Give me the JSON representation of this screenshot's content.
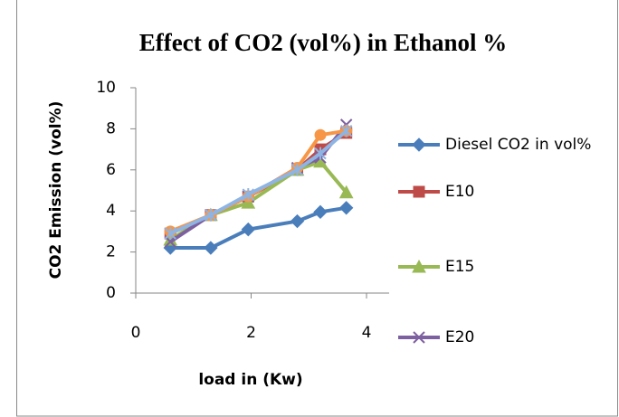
{
  "chart_data": {
    "type": "scatter",
    "title": "Effect of CO2 (vol%) in Ethanol %",
    "xlabel": "load in (Kw)",
    "ylabel": "CO2 Emission (vol%)",
    "xlim": [
      0,
      4
    ],
    "xticks": [
      0,
      2,
      4
    ],
    "ylim": [
      0,
      10
    ],
    "yticks": [
      0,
      2,
      4,
      6,
      8,
      10
    ],
    "grid": false,
    "legend": "right",
    "series": [
      {
        "name": "Diesel  CO2 in vol%",
        "color": "#4a7ebb",
        "marker": "diamond",
        "x": [
          0.6,
          1.3,
          1.95,
          2.8,
          3.2,
          3.65
        ],
        "values": [
          2.2,
          2.2,
          3.1,
          3.5,
          3.95,
          4.15
        ]
      },
      {
        "name": "E10",
        "color": "#be4b48",
        "marker": "square",
        "x": [
          0.6,
          1.3,
          1.95,
          2.8,
          3.2,
          3.65
        ],
        "values": [
          2.9,
          3.8,
          4.7,
          6.0,
          7.0,
          7.8
        ]
      },
      {
        "name": "E15",
        "color": "#98b954",
        "marker": "triangle",
        "x": [
          0.6,
          1.3,
          1.95,
          2.8,
          3.2,
          3.65
        ],
        "values": [
          2.6,
          3.8,
          4.4,
          6.0,
          6.4,
          4.9
        ]
      },
      {
        "name": "E20",
        "color": "#7d60a0",
        "marker": "x",
        "x": [
          0.6,
          1.3,
          1.95,
          2.8,
          3.2,
          3.65
        ],
        "values": [
          2.5,
          3.8,
          4.7,
          6.1,
          6.6,
          8.2
        ]
      },
      {
        "color": "#f79646",
        "marker": "circle",
        "x": [
          0.6,
          1.3,
          1.95,
          2.8,
          3.2,
          3.65
        ],
        "values": [
          3.0,
          3.8,
          4.7,
          6.1,
          7.7,
          7.9
        ]
      },
      {
        "color": "#8eb4e3",
        "marker": "star",
        "x": [
          0.6,
          1.3,
          1.95,
          2.8,
          3.2,
          3.65
        ],
        "values": [
          2.9,
          3.8,
          4.8,
          6.0,
          6.8,
          7.9
        ]
      }
    ]
  }
}
